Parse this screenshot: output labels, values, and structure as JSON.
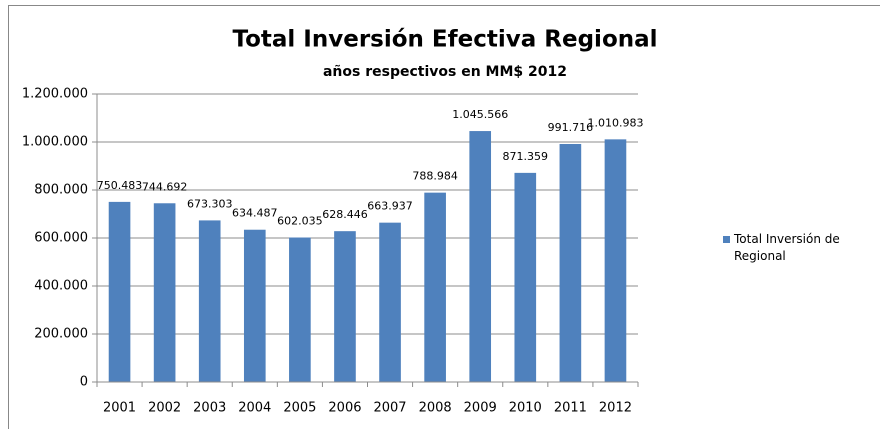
{
  "chart_data": {
    "type": "bar",
    "title": "Total Inversión Efectiva Regional",
    "subtitle": "años respectivos en MM$ 2012",
    "categories": [
      "2001",
      "2002",
      "2003",
      "2004",
      "2005",
      "2006",
      "2007",
      "2008",
      "2009",
      "2010",
      "2011",
      "2012"
    ],
    "series": [
      {
        "name": "Total Inversión de Regional",
        "color": "#4f81bd",
        "values": [
          750483,
          744692,
          673303,
          634487,
          602035,
          628446,
          663937,
          788984,
          1045566,
          871359,
          991716,
          1010983
        ],
        "value_labels": [
          "750.483",
          "744.692",
          "673.303",
          "634.487",
          "602.035",
          "628.446",
          "663.937",
          "788.984",
          "1.045.566",
          "871.359",
          "991.716",
          "1.010.983"
        ]
      }
    ],
    "ylim": [
      0,
      1200000
    ],
    "yticks": [
      0,
      {
        "value": 200000,
        "label": "200.000"
      },
      {
        "value": 400000,
        "label": "400.000"
      },
      {
        "value": 600000,
        "label": "600.000"
      },
      {
        "value": 800000,
        "label": "800.000"
      },
      {
        "value": 1000000,
        "label": "1.000.000"
      },
      {
        "value": 1200000,
        "label": "1.200.000"
      }
    ],
    "grid": true,
    "legend": "right"
  }
}
